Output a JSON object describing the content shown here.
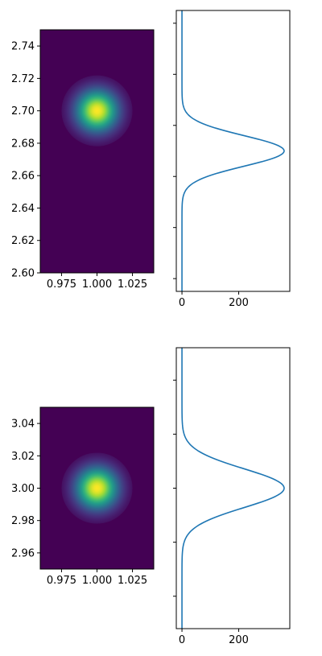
{
  "chart_data": [
    {
      "type": "heatmap",
      "title": "",
      "xlabel": "",
      "ylabel": "",
      "colormap": "viridis",
      "xlim": [
        0.96,
        1.04
      ],
      "ylim": [
        2.6,
        2.75
      ],
      "x_ticks": [
        0.975,
        1.0,
        1.025
      ],
      "x_tick_labels": [
        "0.975",
        "1.000",
        "1.025"
      ],
      "y_ticks": [
        2.6,
        2.62,
        2.64,
        2.66,
        2.68,
        2.7,
        2.72,
        2.74
      ],
      "y_tick_labels": [
        "2.60",
        "2.62",
        "2.64",
        "2.66",
        "2.68",
        "2.70",
        "2.72",
        "2.74"
      ],
      "peak": {
        "x": 1.0,
        "y": 2.7
      },
      "sigma": {
        "x": 0.01,
        "y": 0.01
      }
    },
    {
      "type": "line",
      "title": "",
      "orientation": "vertical",
      "xlabel": "",
      "ylabel": "",
      "xlim": [
        -20,
        380
      ],
      "ylim": [
        2.59,
        2.81
      ],
      "x_ticks": [
        0,
        200
      ],
      "x_tick_labels": [
        "0",
        "200"
      ],
      "y_ticks": [
        2.6,
        2.64,
        2.68,
        2.72,
        2.76,
        2.8
      ],
      "y_tick_labels": [],
      "line_color": "#1f77b4",
      "peak_center": 2.7,
      "peak_value": 360,
      "sigma": 0.012
    },
    {
      "type": "heatmap",
      "title": "",
      "xlabel": "",
      "ylabel": "",
      "colormap": "viridis",
      "xlim": [
        0.96,
        1.04
      ],
      "ylim": [
        2.95,
        3.05
      ],
      "x_ticks": [
        0.975,
        1.0,
        1.025
      ],
      "x_tick_labels": [
        "0.975",
        "1.000",
        "1.025"
      ],
      "y_ticks": [
        2.96,
        2.98,
        3.0,
        3.02,
        3.04
      ],
      "y_tick_labels": [
        "2.96",
        "2.98",
        "3.00",
        "3.02",
        "3.04"
      ],
      "peak": {
        "x": 1.0,
        "y": 3.0
      },
      "sigma": {
        "x": 0.01,
        "y": 0.01
      }
    },
    {
      "type": "line",
      "title": "",
      "orientation": "vertical",
      "xlabel": "",
      "ylabel": "",
      "xlim": [
        -20,
        380
      ],
      "ylim": [
        2.87,
        3.13
      ],
      "x_ticks": [
        0,
        200
      ],
      "x_tick_labels": [
        "0",
        "200"
      ],
      "y_ticks": [
        2.9,
        2.95,
        3.0,
        3.05,
        3.1
      ],
      "y_tick_labels": [],
      "line_color": "#1f77b4",
      "peak_center": 3.0,
      "peak_value": 360,
      "sigma": 0.018
    }
  ]
}
